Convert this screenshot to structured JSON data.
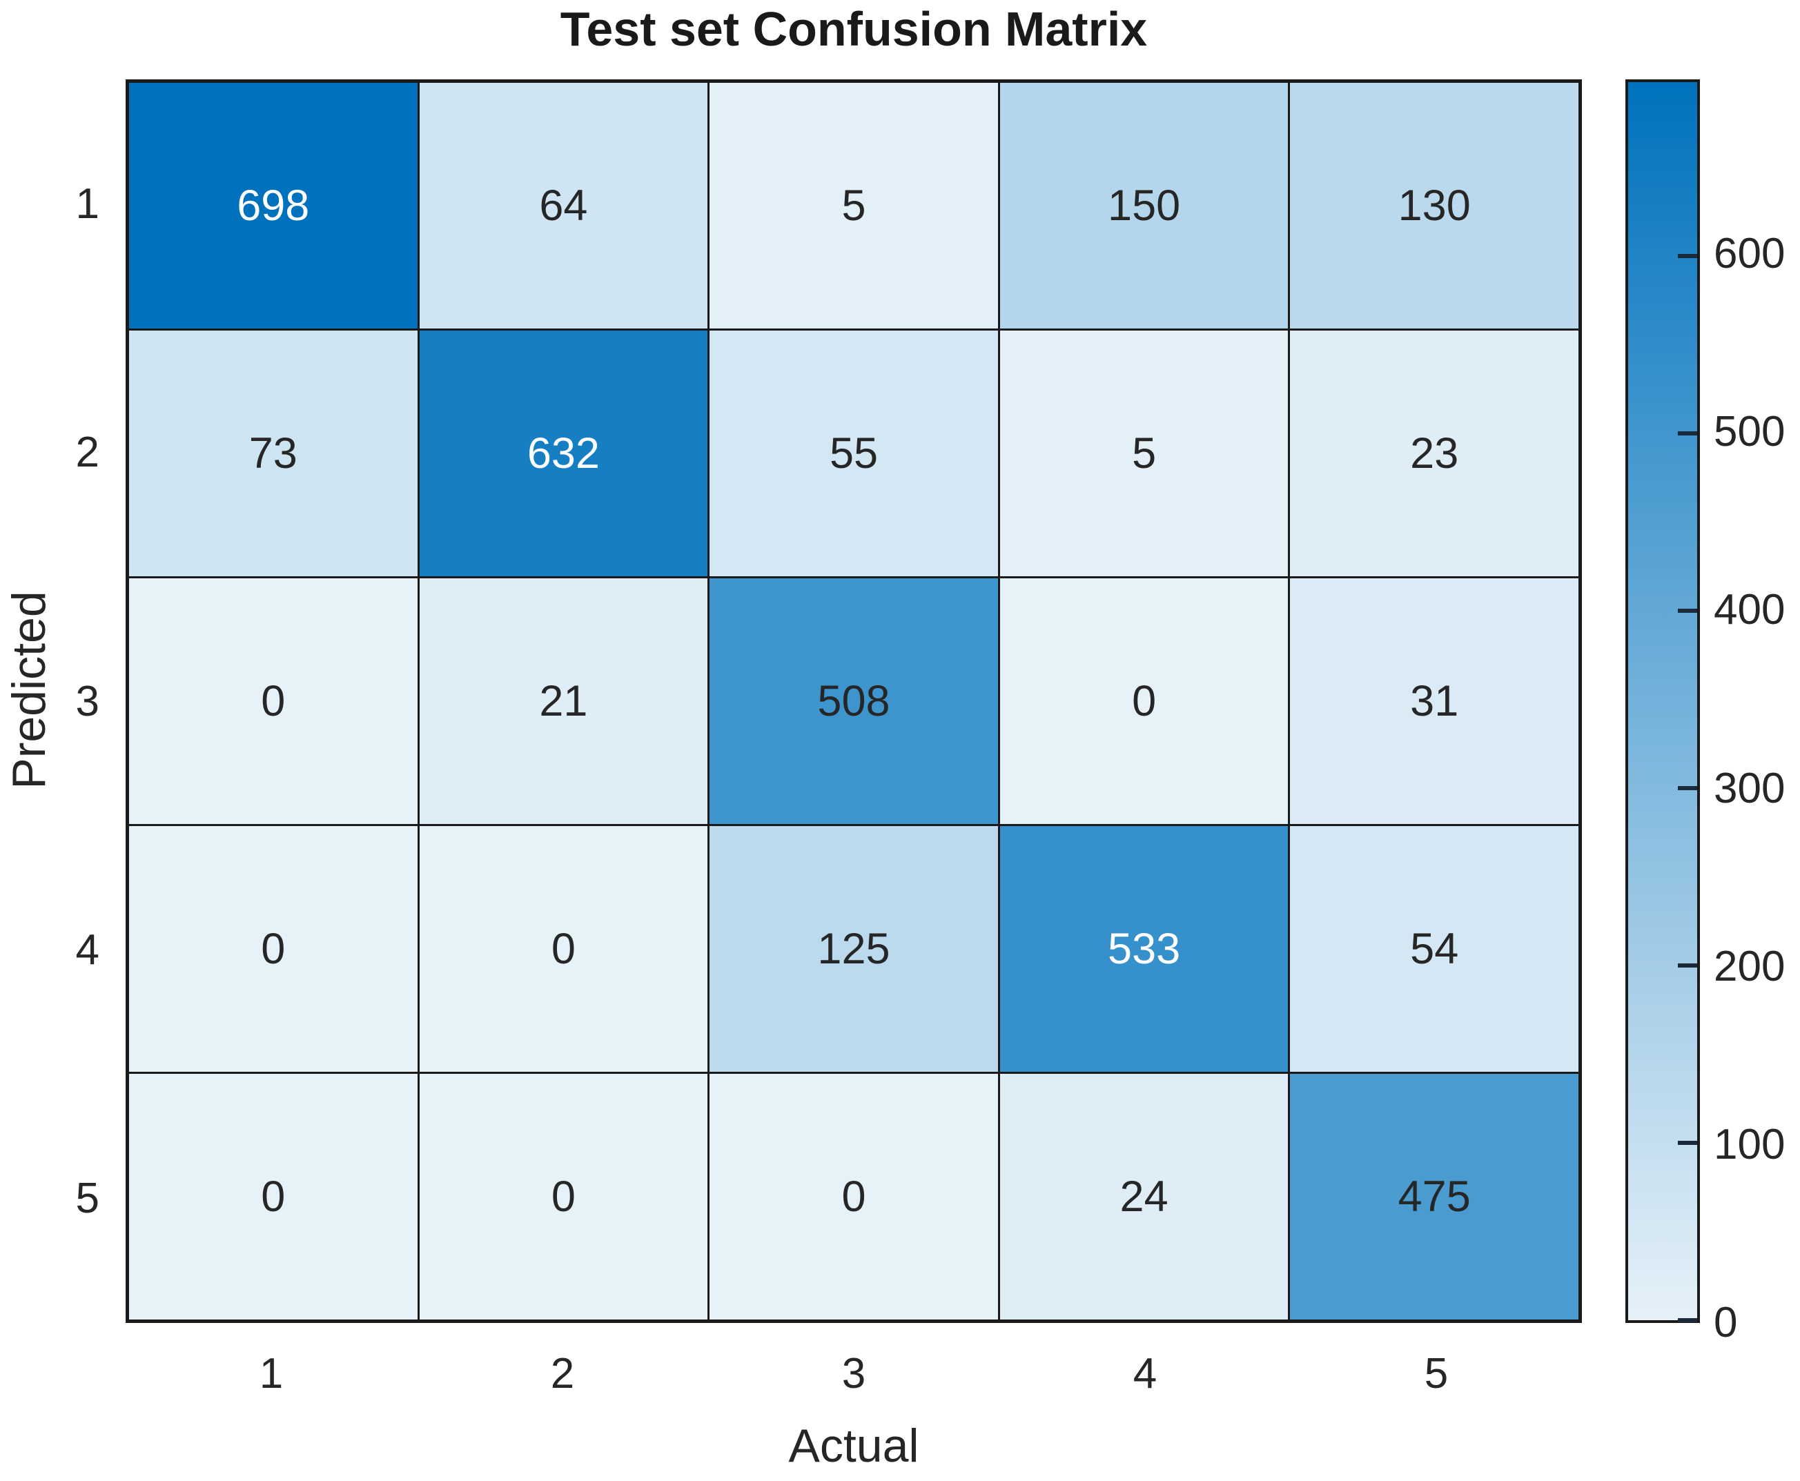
{
  "chart_data": {
    "type": "heatmap",
    "title": "Test set Confusion Matrix",
    "xlabel": "Actual",
    "ylabel": "Predicted",
    "x_categories": [
      "1",
      "2",
      "3",
      "4",
      "5"
    ],
    "y_categories": [
      "1",
      "2",
      "3",
      "4",
      "5"
    ],
    "matrix": [
      [
        698,
        64,
        5,
        150,
        130
      ],
      [
        73,
        632,
        55,
        5,
        23
      ],
      [
        0,
        21,
        508,
        0,
        31
      ],
      [
        0,
        0,
        125,
        533,
        54
      ],
      [
        0,
        0,
        0,
        24,
        475
      ]
    ],
    "vmin": 0,
    "vmax": 698,
    "colorbar_ticks": [
      0,
      100,
      200,
      300,
      400,
      500,
      600
    ],
    "colorbar_position": "right",
    "grid": true,
    "colors": {
      "colormap_high": "#0072bd",
      "colormap_low_mix": 0.1,
      "cell_text_dark": "#262626",
      "cell_text_light": "#ffffff",
      "axis_line": "#1a1a1a",
      "tick_text": "#262626",
      "background": "#ffffff"
    }
  }
}
